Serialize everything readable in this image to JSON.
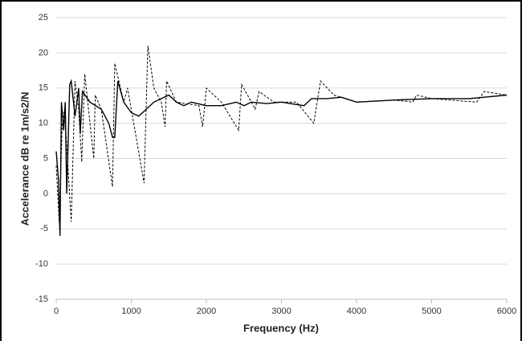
{
  "chart_data": {
    "type": "line",
    "x_label": "Frequency (Hz)",
    "y_label": "Accelerance dB re 1m/s2/N",
    "xlim": [
      0,
      6000
    ],
    "xticks": [
      0,
      1000,
      2000,
      3000,
      4000,
      5000,
      6000
    ],
    "ylim": [
      -15,
      25
    ],
    "yticks": [
      -15,
      -10,
      -5,
      0,
      5,
      10,
      15,
      20,
      25
    ],
    "grid": true,
    "series": [
      {
        "color": "#000000",
        "style": "solid",
        "x": [
          0,
          30,
          50,
          70,
          100,
          120,
          140,
          180,
          200,
          250,
          300,
          320,
          350,
          450,
          600,
          700,
          750,
          780,
          820,
          900,
          1000,
          1100,
          1200,
          1300,
          1400,
          1500,
          1600,
          1700,
          1800,
          2000,
          2200,
          2400,
          2500,
          2600,
          2800,
          3000,
          3300,
          3400,
          3600,
          3800,
          4000,
          4500,
          5000,
          5500,
          6000
        ],
        "values": [
          6,
          2,
          -6,
          13,
          9,
          13,
          0,
          15.5,
          16,
          11,
          15,
          8.5,
          14.5,
          13,
          12,
          10,
          8,
          8,
          16,
          13,
          11.5,
          11,
          12,
          13,
          13.5,
          14,
          13,
          12.5,
          13,
          12.5,
          12.5,
          13,
          12.5,
          13,
          12.8,
          13,
          12.5,
          13.5,
          13.5,
          13.7,
          13,
          13.3,
          13.5,
          13.5,
          14
        ]
      },
      {
        "color": "#000000",
        "style": "dashed",
        "x": [
          0,
          40,
          80,
          110,
          150,
          200,
          250,
          300,
          340,
          380,
          500,
          520,
          600,
          750,
          780,
          900,
          950,
          1000,
          1170,
          1220,
          1300,
          1400,
          1450,
          1470,
          1600,
          1900,
          1950,
          2000,
          2200,
          2430,
          2470,
          2600,
          2650,
          2700,
          2900,
          3200,
          3430,
          3520,
          3700,
          4000,
          4500,
          4750,
          4800,
          5000,
          5600,
          5700,
          6000
        ],
        "values": [
          4,
          -4,
          10,
          12,
          5,
          -4,
          16,
          12,
          4.5,
          17,
          5,
          14,
          12,
          1,
          18.5,
          13,
          15,
          12,
          1.5,
          21,
          15,
          13,
          9.5,
          16,
          13,
          12.5,
          9.5,
          15,
          13,
          9,
          15.5,
          13,
          12,
          14.5,
          13,
          13,
          10,
          16,
          14,
          13,
          13.3,
          13,
          14,
          13.5,
          13,
          14.5,
          14
        ]
      }
    ]
  }
}
